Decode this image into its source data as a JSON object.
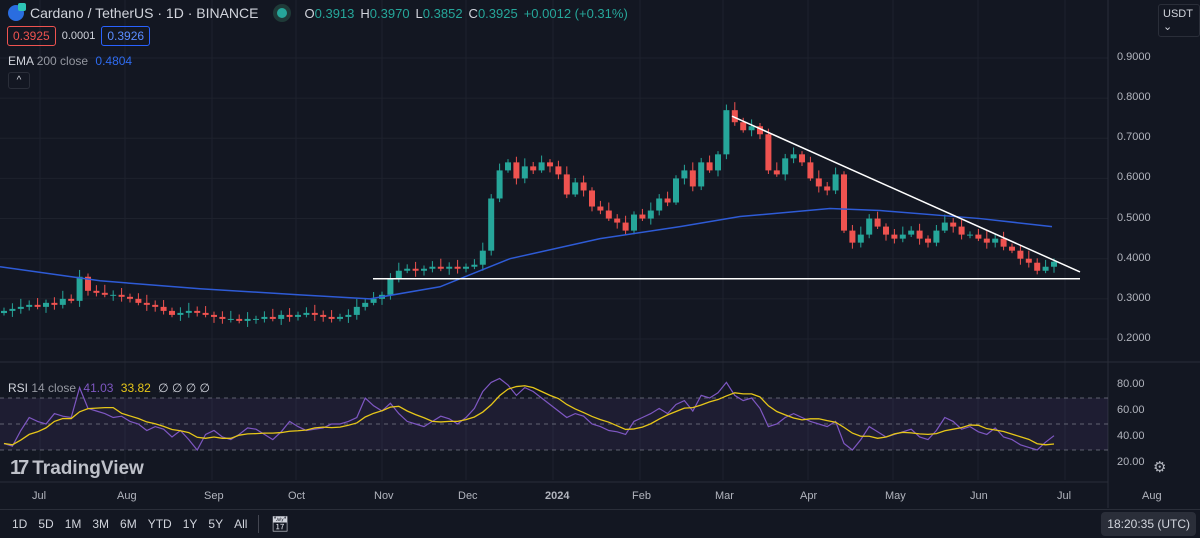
{
  "header": {
    "symbol": "Cardano / TetherUS · 1D · BINANCE",
    "open_label": "O",
    "open": "0.3913",
    "high_label": "H",
    "high": "0.3970",
    "low_label": "L",
    "low": "0.3852",
    "close_label": "C",
    "close": "0.3925",
    "change": "+0.0012 (+0.31%)",
    "sell": "0.3925",
    "spread": "0.0001",
    "buy": "0.3926"
  },
  "ema": {
    "name": "EMA",
    "params": "200 close",
    "value": "0.4804"
  },
  "rsi": {
    "name": "RSI",
    "params": "14 close",
    "value": "41.03",
    "ma": "33.82",
    "extra": "∅ ∅ ∅ ∅"
  },
  "currency": "USDT ⌄",
  "colors": {
    "background": "#131722",
    "up": "#26a69a",
    "down": "#ef5350",
    "ema": "#2e5bd6",
    "rsi": "#7e57c2",
    "rsi_ma": "#e6c619",
    "trendline": "#ffffff"
  },
  "watermark": "TradingView",
  "toolbar": {
    "ranges": [
      "1D",
      "5D",
      "1M",
      "3M",
      "6M",
      "YTD",
      "1Y",
      "5Y",
      "All"
    ],
    "calendar_icon": "calendar-goto-icon"
  },
  "clock": "18:20:35 (UTC)",
  "chart_data": {
    "type": "candlestick",
    "interval": "1D",
    "sample_step_days": 3,
    "start_date": "2023-06-17",
    "price_ticks": [
      "0.9000",
      "0.8000",
      "0.7000",
      "0.6000",
      "0.5000",
      "0.4000",
      "0.3000",
      "0.2000"
    ],
    "price_ylim": [
      0.17,
      0.93
    ],
    "rsi_ticks": [
      "80.00",
      "60.00",
      "40.00",
      "20.00"
    ],
    "rsi_bands": [
      70,
      50,
      30
    ],
    "x_ticks": [
      "Jul",
      "Aug",
      "Sep",
      "Oct",
      "Nov",
      "Dec",
      "2024",
      "Feb",
      "Mar",
      "Apr",
      "May",
      "Jun",
      "Jul",
      "Aug"
    ],
    "closes": [
      0.27,
      0.275,
      0.28,
      0.285,
      0.28,
      0.29,
      0.285,
      0.3,
      0.295,
      0.355,
      0.32,
      0.315,
      0.31,
      0.31,
      0.305,
      0.3,
      0.29,
      0.285,
      0.28,
      0.27,
      0.26,
      0.265,
      0.27,
      0.265,
      0.26,
      0.255,
      0.25,
      0.25,
      0.245,
      0.25,
      0.25,
      0.255,
      0.25,
      0.26,
      0.255,
      0.26,
      0.265,
      0.26,
      0.255,
      0.25,
      0.255,
      0.26,
      0.28,
      0.29,
      0.3,
      0.31,
      0.35,
      0.37,
      0.375,
      0.37,
      0.375,
      0.38,
      0.375,
      0.38,
      0.375,
      0.38,
      0.385,
      0.42,
      0.55,
      0.62,
      0.64,
      0.6,
      0.63,
      0.62,
      0.64,
      0.63,
      0.61,
      0.56,
      0.59,
      0.57,
      0.53,
      0.52,
      0.5,
      0.49,
      0.47,
      0.51,
      0.5,
      0.52,
      0.55,
      0.54,
      0.6,
      0.62,
      0.58,
      0.64,
      0.62,
      0.66,
      0.77,
      0.74,
      0.72,
      0.73,
      0.71,
      0.62,
      0.61,
      0.65,
      0.66,
      0.64,
      0.6,
      0.58,
      0.57,
      0.61,
      0.47,
      0.44,
      0.46,
      0.5,
      0.48,
      0.46,
      0.45,
      0.46,
      0.47,
      0.45,
      0.44,
      0.47,
      0.49,
      0.48,
      0.46,
      0.46,
      0.45,
      0.44,
      0.45,
      0.43,
      0.42,
      0.4,
      0.39,
      0.37,
      0.38,
      0.3925
    ],
    "ema200": [
      [
        0,
        0.38
      ],
      [
        100,
        0.345
      ],
      [
        200,
        0.325
      ],
      [
        300,
        0.31
      ],
      [
        370,
        0.3
      ],
      [
        440,
        0.33
      ],
      [
        510,
        0.4
      ],
      [
        600,
        0.45
      ],
      [
        680,
        0.48
      ],
      [
        740,
        0.505
      ],
      [
        830,
        0.525
      ],
      [
        880,
        0.52
      ],
      [
        980,
        0.5
      ],
      [
        1052,
        0.48
      ]
    ],
    "rsi": [
      35,
      33,
      45,
      55,
      52,
      50,
      58,
      56,
      55,
      78,
      62,
      60,
      58,
      55,
      56,
      52,
      50,
      45,
      48,
      46,
      40,
      45,
      38,
      30,
      42,
      45,
      40,
      38,
      42,
      47,
      46,
      42,
      38,
      44,
      52,
      48,
      45,
      46,
      47,
      50,
      50,
      52,
      55,
      70,
      64,
      60,
      66,
      58,
      52,
      50,
      48,
      52,
      56,
      54,
      50,
      55,
      62,
      75,
      82,
      85,
      80,
      72,
      78,
      75,
      70,
      65,
      60,
      55,
      58,
      56,
      50,
      48,
      45,
      44,
      42,
      52,
      55,
      58,
      62,
      58,
      65,
      68,
      60,
      72,
      70,
      74,
      82,
      72,
      68,
      70,
      62,
      48,
      50,
      55,
      58,
      55,
      52,
      50,
      48,
      52,
      35,
      30,
      38,
      48,
      44,
      40,
      42,
      44,
      46,
      40,
      38,
      45,
      55,
      52,
      46,
      48,
      44,
      42,
      47,
      40,
      38,
      34,
      32,
      30,
      36,
      41
    ],
    "trendlines": [
      {
        "kind": "support",
        "price": 0.35,
        "from": "2023-10-31",
        "to": "2024-07-05"
      },
      {
        "kind": "resistance",
        "from_price": 0.755,
        "to_price": 0.367,
        "from": "2024-03-05",
        "to": "2024-07-05"
      }
    ]
  }
}
